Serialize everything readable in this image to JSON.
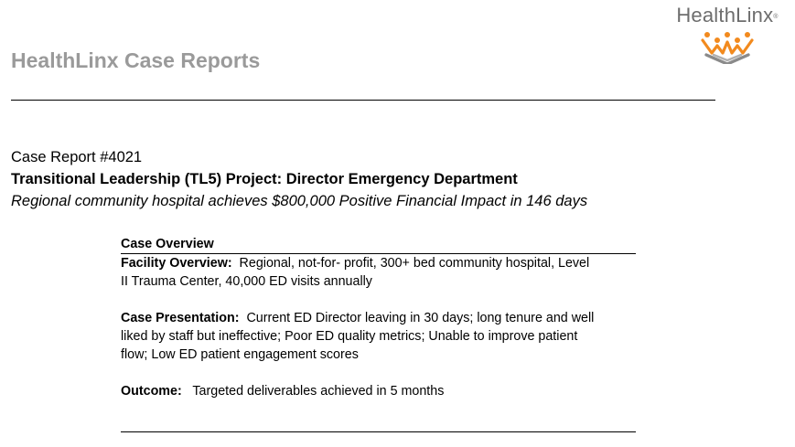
{
  "logo": {
    "text": "HealthLinx",
    "registered": "®",
    "accent_color": "#f28a1e",
    "mark_color": "#8a8a8a"
  },
  "header": {
    "title": "HealthLinx Case Reports"
  },
  "case": {
    "number": "Case Report #4021",
    "title": "Transitional Leadership (TL5) Project:  Director Emergency Department",
    "subtitle": "Regional community hospital achieves $800,000 Positive Financial Impact in 146 days"
  },
  "overview": {
    "heading": "Case Overview",
    "facility": {
      "label": "Facility Overview:",
      "text": "  Regional, not-for- profit, 300+ bed community hospital, Level II Trauma Center, 40,000 ED visits annually"
    },
    "presentation": {
      "label": "Case Presentation:",
      "text": "  Current ED Director leaving in 30 days; long tenure and well liked by staff but ineffective; Poor ED quality metrics; Unable to improve patient flow; Low ED patient engagement scores"
    },
    "outcome": {
      "label": "Outcome:",
      "text": "   Targeted deliverables achieved in 5 months"
    }
  }
}
